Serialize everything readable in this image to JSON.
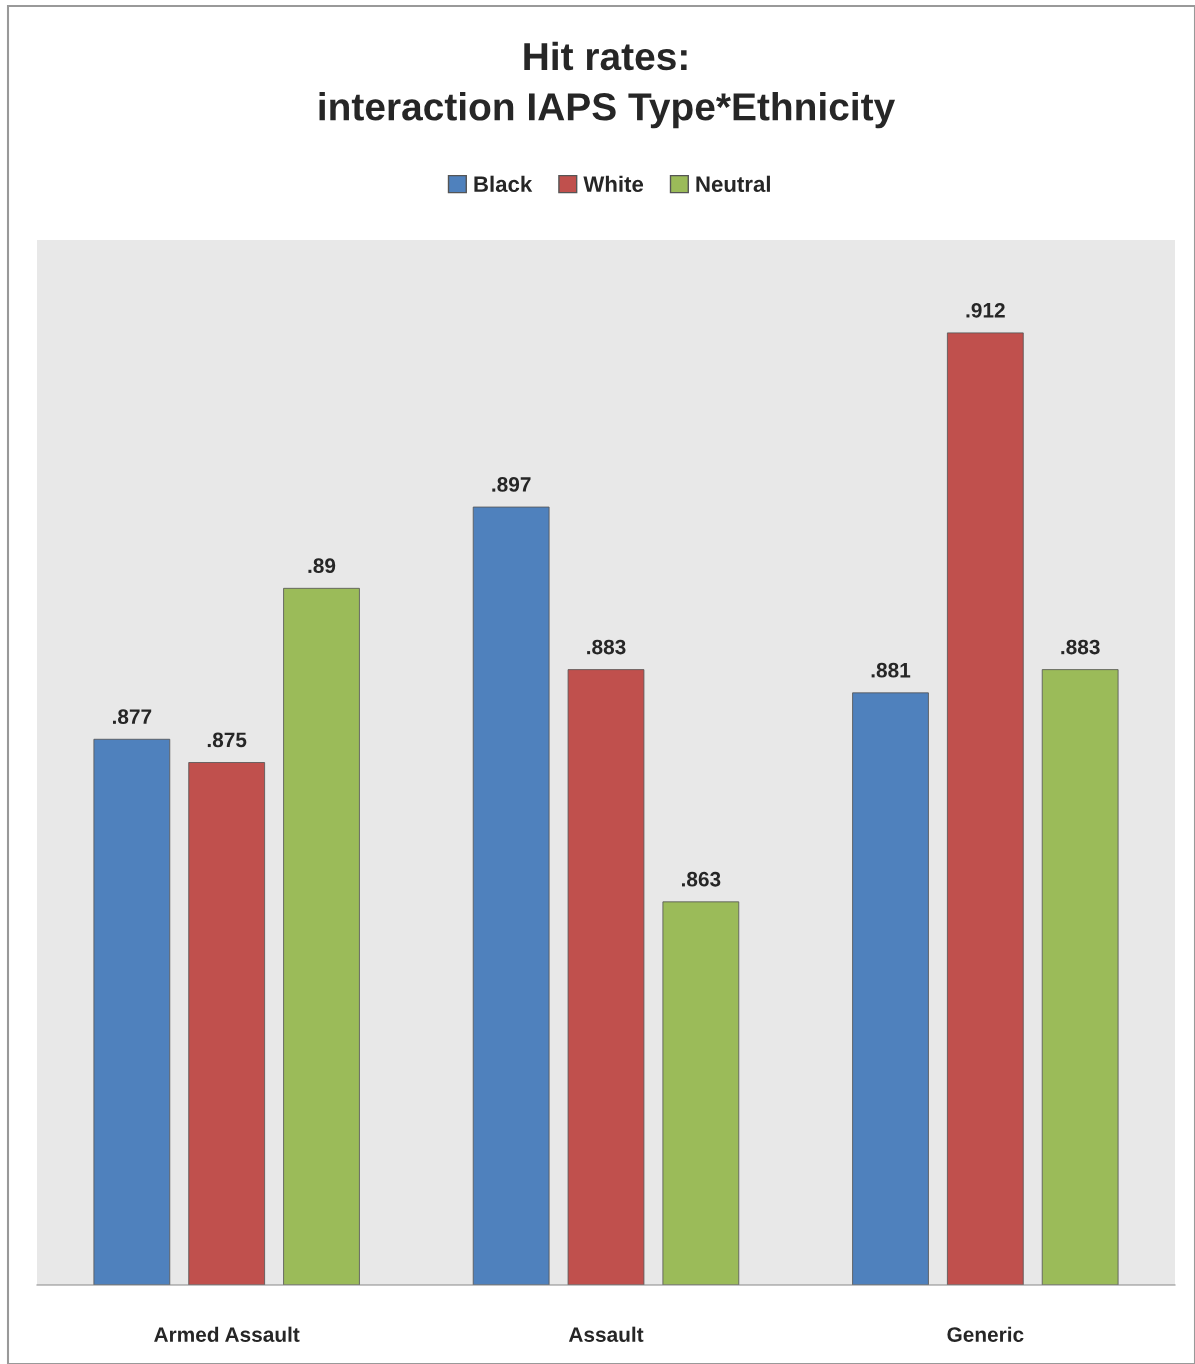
{
  "chart_data": {
    "type": "bar",
    "title": "Hit rates:\ninteraction IAPS Type*Ethnicity",
    "categories": [
      "Armed Assault",
      "Assault",
      "Generic"
    ],
    "series": [
      {
        "name": "Black",
        "color": "#4f81bd",
        "values": [
          0.877,
          0.897,
          0.881
        ],
        "value_labels": [
          ".877",
          ".897",
          ".881"
        ]
      },
      {
        "name": "White",
        "color": "#c0504d",
        "values": [
          0.875,
          0.883,
          0.912
        ],
        "value_labels": [
          ".875",
          ".883",
          ".912"
        ]
      },
      {
        "name": "Neutral",
        "color": "#9bbb59",
        "values": [
          0.89,
          0.863,
          0.883
        ],
        "value_labels": [
          ".89",
          ".863",
          ".883"
        ]
      }
    ],
    "ylim": [
      0.83,
      0.92
    ],
    "tick_labels": "x",
    "legend": "top",
    "grid": false
  }
}
